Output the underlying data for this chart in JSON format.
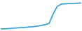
{
  "x": [
    0,
    1,
    2,
    3,
    4,
    5,
    6,
    7,
    8,
    9,
    10,
    11,
    12,
    13,
    14,
    15,
    16,
    17,
    18,
    19,
    20
  ],
  "y": [
    5,
    5,
    6,
    7,
    8,
    9,
    10,
    11,
    12,
    14,
    16,
    19,
    23,
    55,
    80,
    88,
    89,
    90,
    90,
    91,
    92
  ],
  "line_color": "#2e9fd4",
  "linewidth": 1.2,
  "background_color": "#ffffff",
  "ylim": [
    0,
    100
  ],
  "xlim": [
    0,
    20
  ]
}
